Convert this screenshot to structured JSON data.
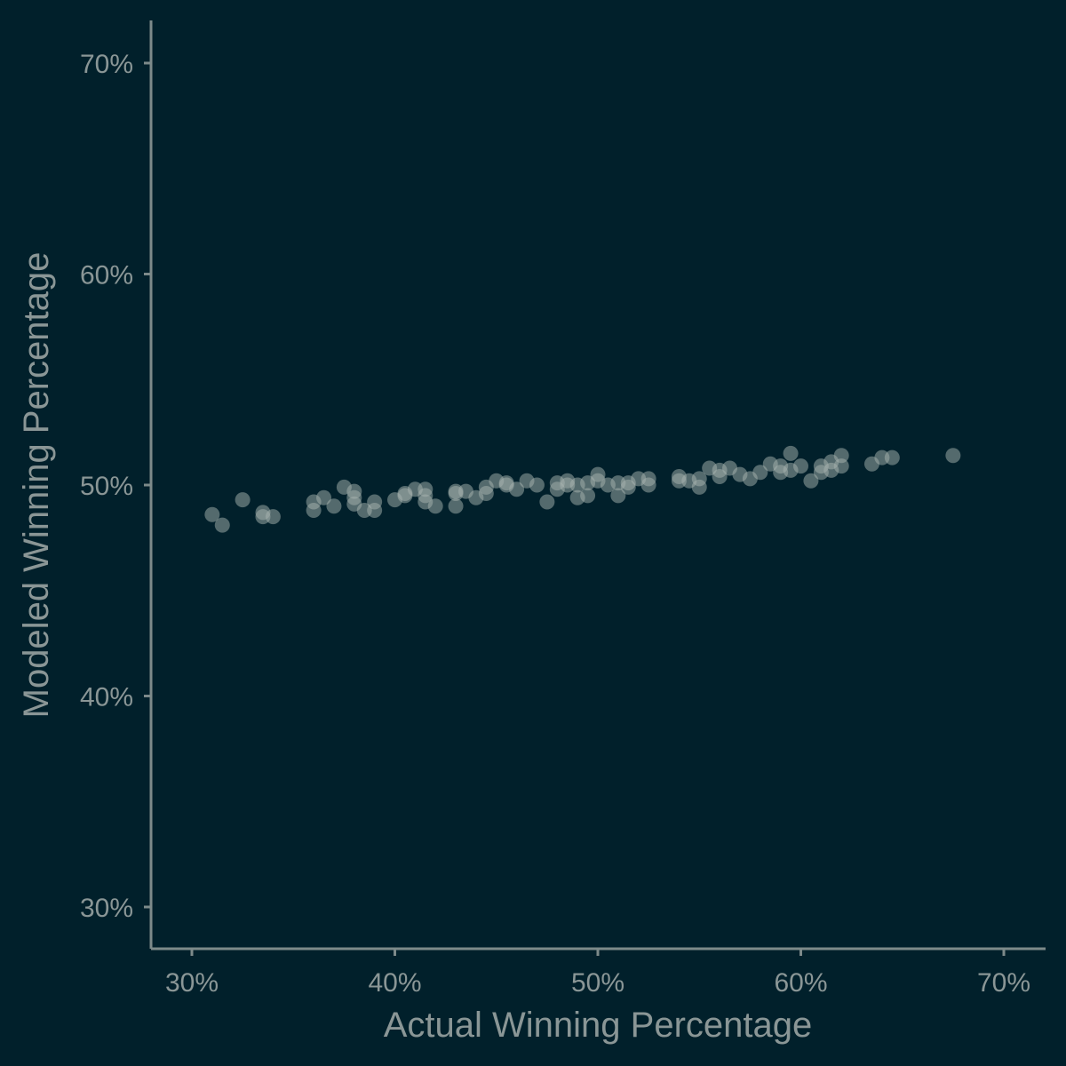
{
  "chart_data": {
    "type": "scatter",
    "title": "",
    "xlabel": "Actual Winning Percentage",
    "ylabel": "Modeled Winning Percentage",
    "xlim": [
      0.28,
      0.72
    ],
    "ylim": [
      0.28,
      0.72
    ],
    "x_ticks": [
      0.3,
      0.4,
      0.5,
      0.6,
      0.7
    ],
    "y_ticks": [
      0.3,
      0.4,
      0.5,
      0.6,
      0.7
    ],
    "x_tick_labels": [
      "30%",
      "40%",
      "50%",
      "60%",
      "70%"
    ],
    "y_tick_labels": [
      "30%",
      "40%",
      "50%",
      "60%",
      "70%"
    ],
    "grid": false,
    "point_color": "#a8b4b0",
    "background_color": "#01202b",
    "axis_color": "#7d8a8a",
    "text_color": "#8a9696",
    "points": [
      [
        0.31,
        0.486
      ],
      [
        0.315,
        0.481
      ],
      [
        0.325,
        0.493
      ],
      [
        0.335,
        0.487
      ],
      [
        0.335,
        0.485
      ],
      [
        0.34,
        0.485
      ],
      [
        0.36,
        0.492
      ],
      [
        0.36,
        0.488
      ],
      [
        0.365,
        0.494
      ],
      [
        0.37,
        0.49
      ],
      [
        0.375,
        0.499
      ],
      [
        0.38,
        0.497
      ],
      [
        0.38,
        0.494
      ],
      [
        0.38,
        0.491
      ],
      [
        0.385,
        0.488
      ],
      [
        0.39,
        0.492
      ],
      [
        0.39,
        0.488
      ],
      [
        0.4,
        0.493
      ],
      [
        0.405,
        0.495
      ],
      [
        0.405,
        0.496
      ],
      [
        0.41,
        0.498
      ],
      [
        0.415,
        0.498
      ],
      [
        0.415,
        0.495
      ],
      [
        0.415,
        0.492
      ],
      [
        0.42,
        0.49
      ],
      [
        0.43,
        0.497
      ],
      [
        0.43,
        0.496
      ],
      [
        0.43,
        0.49
      ],
      [
        0.435,
        0.497
      ],
      [
        0.44,
        0.494
      ],
      [
        0.445,
        0.499
      ],
      [
        0.445,
        0.496
      ],
      [
        0.45,
        0.502
      ],
      [
        0.455,
        0.501
      ],
      [
        0.455,
        0.5
      ],
      [
        0.46,
        0.498
      ],
      [
        0.465,
        0.502
      ],
      [
        0.47,
        0.5
      ],
      [
        0.475,
        0.492
      ],
      [
        0.48,
        0.501
      ],
      [
        0.48,
        0.498
      ],
      [
        0.485,
        0.502
      ],
      [
        0.485,
        0.5
      ],
      [
        0.49,
        0.5
      ],
      [
        0.49,
        0.494
      ],
      [
        0.495,
        0.501
      ],
      [
        0.495,
        0.495
      ],
      [
        0.5,
        0.505
      ],
      [
        0.5,
        0.502
      ],
      [
        0.505,
        0.5
      ],
      [
        0.51,
        0.501
      ],
      [
        0.51,
        0.495
      ],
      [
        0.515,
        0.499
      ],
      [
        0.515,
        0.501
      ],
      [
        0.52,
        0.503
      ],
      [
        0.525,
        0.503
      ],
      [
        0.525,
        0.5
      ],
      [
        0.54,
        0.504
      ],
      [
        0.54,
        0.502
      ],
      [
        0.545,
        0.502
      ],
      [
        0.55,
        0.503
      ],
      [
        0.55,
        0.499
      ],
      [
        0.555,
        0.508
      ],
      [
        0.56,
        0.507
      ],
      [
        0.56,
        0.504
      ],
      [
        0.565,
        0.508
      ],
      [
        0.57,
        0.505
      ],
      [
        0.575,
        0.503
      ],
      [
        0.58,
        0.506
      ],
      [
        0.585,
        0.51
      ],
      [
        0.59,
        0.509
      ],
      [
        0.59,
        0.506
      ],
      [
        0.595,
        0.515
      ],
      [
        0.595,
        0.507
      ],
      [
        0.6,
        0.509
      ],
      [
        0.605,
        0.502
      ],
      [
        0.61,
        0.509
      ],
      [
        0.61,
        0.506
      ],
      [
        0.615,
        0.511
      ],
      [
        0.615,
        0.507
      ],
      [
        0.62,
        0.514
      ],
      [
        0.62,
        0.509
      ],
      [
        0.635,
        0.51
      ],
      [
        0.64,
        0.513
      ],
      [
        0.645,
        0.513
      ],
      [
        0.675,
        0.514
      ]
    ]
  }
}
